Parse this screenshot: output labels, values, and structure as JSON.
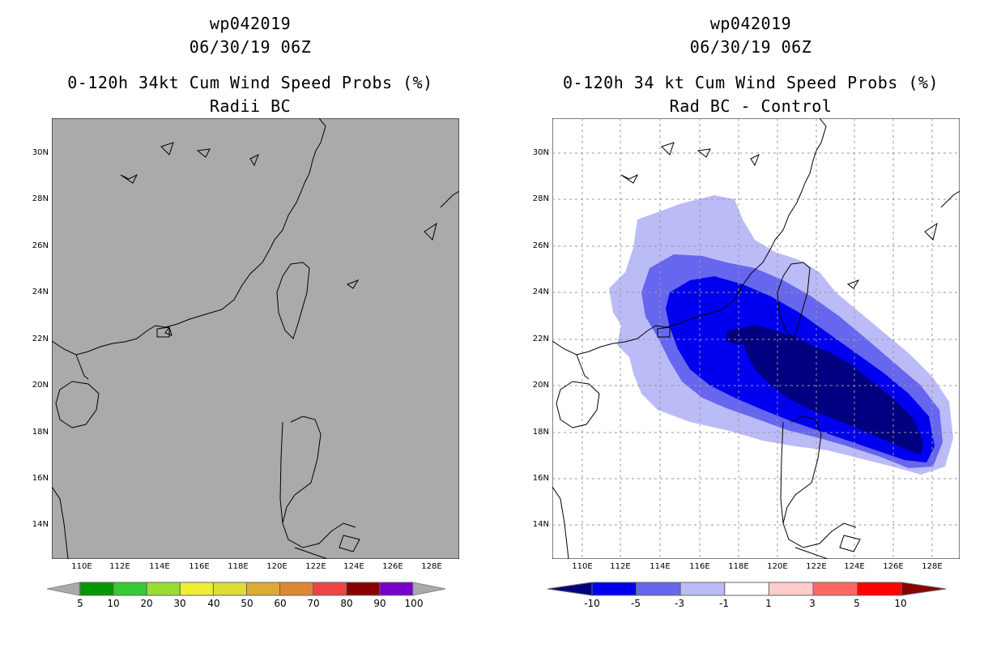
{
  "left_panel": {
    "title_line1": "wp042019",
    "title_line2": "06/30/19 06Z",
    "title_line3": "0-120h 34kt Cum Wind Speed Probs (%)",
    "title_line4": "Radii BC",
    "map_fill": "#aaaaaa",
    "colorbar_labels": [
      "5",
      "10",
      "20",
      "30",
      "40",
      "50",
      "60",
      "70",
      "80",
      "90",
      "100"
    ],
    "colorbar_colors": [
      "#009900",
      "#33cc33",
      "#99dd33",
      "#eeee33",
      "#dddd33",
      "#ddaa33",
      "#dd8833",
      "#ee4444",
      "#880000",
      "#7700cc"
    ]
  },
  "right_panel": {
    "title_line1": "wp042019",
    "title_line2": "06/30/19 06Z",
    "title_line3": "0-120h 34 kt Cum Wind Speed Probs (%)",
    "title_line4": "Rad BC - Control",
    "colorbar_labels": [
      "-10",
      "-5",
      "-3",
      "-1",
      "1",
      "3",
      "5",
      "10"
    ],
    "colorbar_colors": [
      "#000080",
      "#0000ee",
      "#6666ee",
      "#bbbbf8",
      "#ffffff",
      "#ffcccc",
      "#ff6666",
      "#ff0000",
      "#880000"
    ]
  },
  "axes": {
    "lat_labels": [
      "30N",
      "28N",
      "26N",
      "24N",
      "22N",
      "20N",
      "18N",
      "16N",
      "14N"
    ],
    "lon_labels": [
      "110E",
      "112E",
      "114E",
      "116E",
      "118E",
      "120E",
      "122E",
      "124E",
      "126E",
      "128E"
    ]
  }
}
